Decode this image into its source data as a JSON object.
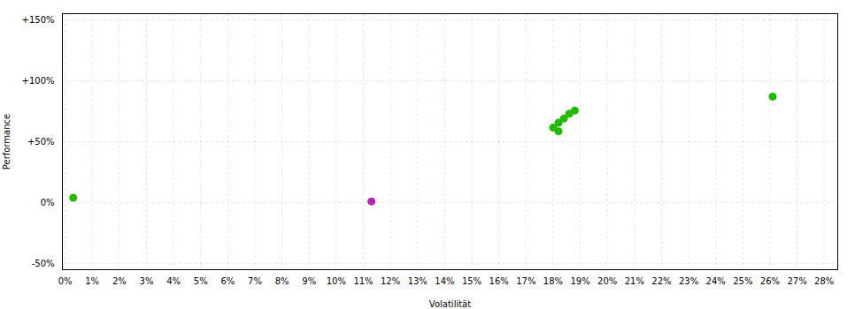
{
  "chart_data": {
    "type": "scatter",
    "xlabel": "Volatilität",
    "ylabel": "Performance",
    "xlim": [
      -0.001,
      0.285
    ],
    "ylim": [
      -0.55,
      1.55
    ],
    "xticks": [
      {
        "value": 0.0,
        "label": "0%"
      },
      {
        "value": 0.01,
        "label": "1%"
      },
      {
        "value": 0.02,
        "label": "2%"
      },
      {
        "value": 0.03,
        "label": "3%"
      },
      {
        "value": 0.04,
        "label": "4%"
      },
      {
        "value": 0.05,
        "label": "5%"
      },
      {
        "value": 0.06,
        "label": "6%"
      },
      {
        "value": 0.07,
        "label": "7%"
      },
      {
        "value": 0.08,
        "label": "8%"
      },
      {
        "value": 0.09,
        "label": "9%"
      },
      {
        "value": 0.1,
        "label": "10%"
      },
      {
        "value": 0.11,
        "label": "11%"
      },
      {
        "value": 0.12,
        "label": "12%"
      },
      {
        "value": 0.13,
        "label": "13%"
      },
      {
        "value": 0.14,
        "label": "14%"
      },
      {
        "value": 0.15,
        "label": "15%"
      },
      {
        "value": 0.16,
        "label": "16%"
      },
      {
        "value": 0.17,
        "label": "17%"
      },
      {
        "value": 0.18,
        "label": "18%"
      },
      {
        "value": 0.19,
        "label": "19%"
      },
      {
        "value": 0.2,
        "label": "20%"
      },
      {
        "value": 0.21,
        "label": "21%"
      },
      {
        "value": 0.22,
        "label": "22%"
      },
      {
        "value": 0.23,
        "label": "23%"
      },
      {
        "value": 0.24,
        "label": "24%"
      },
      {
        "value": 0.25,
        "label": "25%"
      },
      {
        "value": 0.26,
        "label": "26%"
      },
      {
        "value": 0.27,
        "label": "27%"
      },
      {
        "value": 0.28,
        "label": "28%"
      }
    ],
    "yticks": [
      {
        "value": -0.5,
        "label": "-50%"
      },
      {
        "value": 0.0,
        "label": "0%"
      },
      {
        "value": 0.5,
        "label": "+50%"
      },
      {
        "value": 1.0,
        "label": "+100%"
      },
      {
        "value": 1.5,
        "label": "+150%"
      }
    ],
    "grid": true,
    "series": [
      {
        "color": "#22bb00",
        "x": [
          0.186,
          0.184,
          0.182,
          0.18,
          0.182,
          0.188,
          0.261
        ],
        "values": [
          0.73,
          0.69,
          0.655,
          0.615,
          0.585,
          0.755,
          0.87
        ]
      },
      {
        "color": "#bb22bb",
        "x": [
          0.113
        ],
        "values": [
          0.01
        ]
      },
      {
        "color": "#22bb00",
        "x": [
          0.003
        ],
        "values": [
          0.04
        ]
      }
    ]
  }
}
